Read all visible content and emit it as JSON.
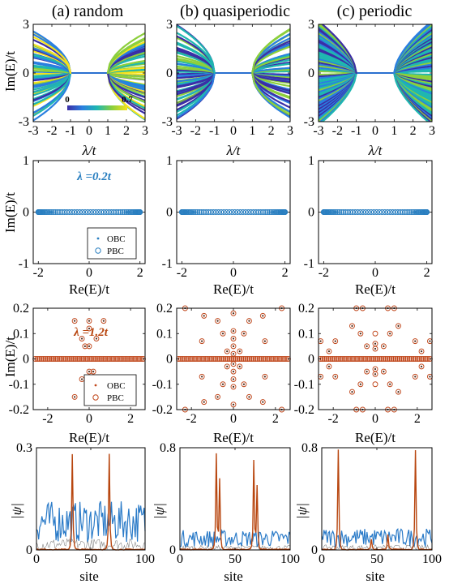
{
  "column_titles": [
    "(a) random",
    "(b) quasiperiodic",
    "(c) periodic"
  ],
  "colorbar": {
    "min_label": "0",
    "max_label": "0.7",
    "colors": [
      "#3b2ea6",
      "#2a7fe0",
      "#1fb7b0",
      "#8ccf3c",
      "#f5e21c"
    ]
  },
  "colors": {
    "obc_blue": "#2a7fc0",
    "pbc_orange": "#c0461a",
    "psi_blue": "#2b7bc8",
    "psi_red": "#b8460f"
  },
  "chart_data": [
    {
      "id": "row1",
      "type": "line",
      "xlabel": "λ/t",
      "ylabel": "Im(E)/t",
      "xlim": [
        -3,
        3
      ],
      "ylim": [
        -3,
        3
      ],
      "xticks": [
        -3,
        -2,
        -1,
        0,
        1,
        2,
        3
      ],
      "xtick_labels": [
        "-3",
        "-2",
        "-1",
        "0",
        "1",
        "2",
        "3"
      ],
      "yticks": [
        -3,
        0,
        3
      ],
      "ytick_labels": [
        "-3",
        "0",
        "3"
      ],
      "description": "Im(E) branches vs λ, colored by IPR (0 to 0.7); Im(E)=0 for |λ|<1, splitting outward for |λ|>1"
    },
    {
      "id": "row2",
      "type": "scatter",
      "xlabel": "Re(E)/t",
      "ylabel": "Im(E)/t",
      "xlim": [
        -2.2,
        2.2
      ],
      "ylim": [
        -1,
        1
      ],
      "xticks": [
        -2,
        0,
        2
      ],
      "xtick_labels": [
        "-2",
        "0",
        "2"
      ],
      "yticks": [
        -1,
        0,
        1
      ],
      "ytick_labels": [
        "-1",
        "0",
        "1"
      ],
      "annotation": "λ =0.2t",
      "legend": [
        "OBC",
        "PBC"
      ],
      "series": [
        {
          "name": "OBC",
          "x_range": [
            -2,
            2
          ],
          "y": 0
        },
        {
          "name": "PBC",
          "x_range": [
            -2,
            2
          ],
          "y": 0
        }
      ]
    },
    {
      "id": "row3",
      "type": "scatter",
      "xlabel": "Re(E)/t",
      "ylabel": "Im(E)/t",
      "xlim": [
        -2.7,
        2.7
      ],
      "ylim": [
        -0.2,
        0.2
      ],
      "xticks": [
        -2,
        0,
        2
      ],
      "xtick_labels": [
        "-2",
        "0",
        "2"
      ],
      "yticks": [
        -0.2,
        -0.1,
        0,
        0.1,
        0.2
      ],
      "ytick_labels": [
        "-0.2",
        "-0.1",
        "0",
        "0.1",
        "0.2"
      ],
      "annotation": "λ =1.2t",
      "legend": [
        "OBC",
        "PBC"
      ],
      "panels": [
        {
          "points": [
            [
              -0.7,
              0.15
            ],
            [
              -0.7,
              -0.15
            ],
            [
              0,
              0.15
            ],
            [
              0,
              -0.15
            ],
            [
              0.7,
              0.15
            ],
            [
              0.7,
              -0.15
            ],
            [
              -0.35,
              0.08
            ],
            [
              0.35,
              0.08
            ],
            [
              -0.35,
              -0.08
            ],
            [
              0.35,
              -0.08
            ],
            [
              0,
              0.12
            ],
            [
              0,
              -0.12
            ],
            [
              -0.2,
              0.05
            ],
            [
              0.2,
              -0.05
            ],
            [
              0,
              0.05
            ],
            [
              0,
              -0.05
            ]
          ]
        },
        {
          "points": [
            [
              -2.3,
              0.2
            ],
            [
              2.3,
              0.2
            ],
            [
              -2.3,
              -0.2
            ],
            [
              2.3,
              -0.2
            ],
            [
              -1.4,
              0.17
            ],
            [
              1.4,
              0.17
            ],
            [
              -1.4,
              -0.17
            ],
            [
              1.4,
              -0.17
            ],
            [
              -0.75,
              0.15
            ],
            [
              0.75,
              0.15
            ],
            [
              -0.75,
              -0.15
            ],
            [
              0.75,
              -0.15
            ],
            [
              0,
              0.18
            ],
            [
              0,
              -0.18
            ],
            [
              -1.5,
              0.07
            ],
            [
              1.5,
              0.07
            ],
            [
              -1.5,
              -0.07
            ],
            [
              1.5,
              -0.07
            ],
            [
              -0.5,
              0.1
            ],
            [
              0.5,
              0.1
            ],
            [
              -0.5,
              -0.1
            ],
            [
              0.5,
              -0.1
            ],
            [
              0,
              0.11
            ],
            [
              0,
              -0.11
            ],
            [
              0,
              0.08
            ],
            [
              0,
              -0.08
            ],
            [
              0,
              0.05
            ],
            [
              0,
              -0.05
            ],
            [
              0,
              0.02
            ],
            [
              0,
              -0.02
            ],
            [
              -0.3,
              0.03
            ],
            [
              0.3,
              0.03
            ],
            [
              -0.3,
              -0.03
            ],
            [
              0.3,
              -0.03
            ]
          ]
        },
        {
          "points": [
            [
              -0.9,
              0.2
            ],
            [
              -0.6,
              0.2
            ],
            [
              0.6,
              0.2
            ],
            [
              0.9,
              0.2
            ],
            [
              -0.9,
              -0.2
            ],
            [
              -0.6,
              -0.2
            ],
            [
              0.6,
              -0.2
            ],
            [
              0.9,
              -0.2
            ],
            [
              -2.6,
              0.07
            ],
            [
              -1.9,
              0.07
            ],
            [
              1.9,
              0.07
            ],
            [
              2.6,
              0.07
            ],
            [
              -2.6,
              -0.07
            ],
            [
              -1.9,
              -0.07
            ],
            [
              1.9,
              -0.07
            ],
            [
              2.6,
              -0.07
            ],
            [
              -2.2,
              0.03
            ],
            [
              2.2,
              0.03
            ],
            [
              -2.2,
              -0.03
            ],
            [
              2.2,
              -0.03
            ],
            [
              -1.1,
              0.13
            ],
            [
              1.1,
              0.13
            ],
            [
              -1.1,
              -0.13
            ],
            [
              1.1,
              -0.13
            ],
            [
              -0.7,
              0.1
            ],
            [
              0.7,
              0.1
            ],
            [
              -0.7,
              -0.1
            ],
            [
              0.7,
              -0.1
            ],
            [
              0,
              0.1
            ],
            [
              0,
              -0.1
            ],
            [
              -0.4,
              0.05
            ],
            [
              0.4,
              0.05
            ],
            [
              -0.4,
              -0.05
            ],
            [
              0.4,
              -0.05
            ],
            [
              0,
              0.06
            ],
            [
              0,
              -0.06
            ],
            [
              0,
              0.04
            ],
            [
              0,
              -0.04
            ]
          ]
        }
      ]
    },
    {
      "id": "row4",
      "type": "line",
      "xlabel": "site",
      "ylabel": "|ψ|",
      "xlim": [
        0,
        100
      ],
      "xticks": [
        0,
        50,
        100
      ],
      "xtick_labels": [
        "0",
        "50",
        "100"
      ],
      "panels": [
        {
          "ylim": [
            0,
            0.3
          ],
          "yticks": [
            0,
            0.3
          ],
          "ytick_labels": [
            "0",
            "0.3"
          ],
          "blue_level": 0.11,
          "red_peaks": [
            [
              33,
              0.28
            ],
            [
              67,
              0.28
            ]
          ]
        },
        {
          "ylim": [
            0,
            0.8
          ],
          "yticks": [
            0,
            0.8
          ],
          "ytick_labels": [
            "0",
            "0.8"
          ],
          "blue_level": 0.12,
          "red_peaks": [
            [
              33,
              0.75
            ],
            [
              36,
              0.55
            ],
            [
              67,
              0.7
            ],
            [
              70,
              0.5
            ]
          ]
        },
        {
          "ylim": [
            0,
            0.8
          ],
          "yticks": [
            0,
            0.8
          ],
          "ytick_labels": [
            "0",
            "0.8"
          ],
          "blue_level": 0.13,
          "red_peaks": [
            [
              15,
              0.78
            ],
            [
              85,
              0.78
            ],
            [
              60,
              0.12
            ],
            [
              45,
              0.08
            ]
          ]
        }
      ]
    }
  ]
}
